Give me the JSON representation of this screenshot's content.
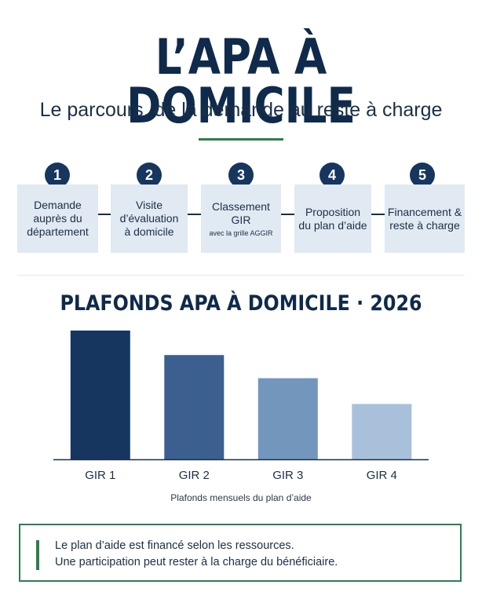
{
  "header": {
    "title": "L’APA À DOMICILE",
    "subtitle": "Le parcours, de la demande au reste à charge"
  },
  "steps": [
    {
      "number": "1",
      "text": "Demande\nauprès du\ndépartement",
      "note": ""
    },
    {
      "number": "2",
      "text": "Visite\nd’évaluation\nà domicile",
      "note": ""
    },
    {
      "number": "3",
      "text": "Classement\nGIR",
      "note": "avec la grille AGGIR"
    },
    {
      "number": "4",
      "text": "Proposition\ndu plan d’aide",
      "note": ""
    },
    {
      "number": "5",
      "text": "Financement &\nreste à charge",
      "note": ""
    }
  ],
  "chart_title": "PLAFONDS APA À DOMICILE · 2026",
  "chart_caption": "Plafonds mensuels du plan d’aide",
  "chart_data": {
    "type": "bar",
    "title": "PLAFONDS APA À DOMICILE · 2026",
    "xlabel": "Plafonds mensuels du plan d’aide",
    "ylabel": "",
    "categories": [
      "GIR 1",
      "GIR 2",
      "GIR 3",
      "GIR 4"
    ],
    "values": [
      100,
      81,
      63,
      43
    ],
    "ylim": [
      0,
      100
    ],
    "grid": false,
    "colors": [
      "#163660",
      "#3b5f8f",
      "#7396bd",
      "#a9c0da"
    ]
  },
  "note": {
    "line1": "Le plan d’aide est financé selon les ressources.",
    "line2": "Une participation peut rester à la charge du bénéficiaire."
  },
  "colors": {
    "navy": "#0f2a4a",
    "accent_green": "#2e7d4f",
    "step_box": "#e1e9f2"
  }
}
